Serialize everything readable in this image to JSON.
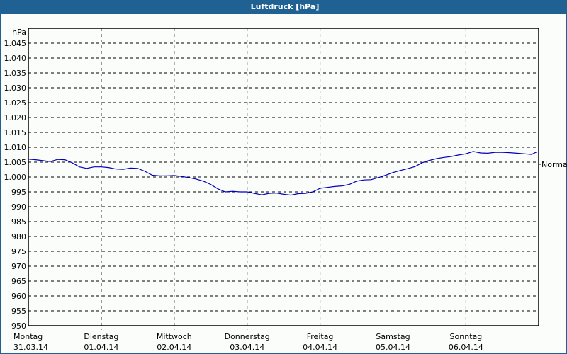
{
  "window": {
    "title": "Luftdruck [hPa]"
  },
  "colors": {
    "titlebar": "#1f6193",
    "line": "#0000c0",
    "grid": "#000000",
    "background": "#fbfdfb"
  },
  "chart_data": {
    "type": "line",
    "title": "Luftdruck [hPa]",
    "xlabel": "",
    "ylabel": "hPa",
    "ylim": [
      950,
      1050
    ],
    "grid": true,
    "yticks": [
      "950",
      "955",
      "960",
      "965",
      "970",
      "975",
      "980",
      "985",
      "990",
      "995",
      "1.000",
      "1.005",
      "1.010",
      "1.015",
      "1.020",
      "1.025",
      "1.030",
      "1.035",
      "1.040",
      "1.045"
    ],
    "xticks": [
      {
        "day": "Montag",
        "date": "31.03.14"
      },
      {
        "day": "Dienstag",
        "date": "01.04.14"
      },
      {
        "day": "Mittwoch",
        "date": "02.04.14"
      },
      {
        "day": "Donnerstag",
        "date": "03.04.14"
      },
      {
        "day": "Freitag",
        "date": "04.04.14"
      },
      {
        "day": "Samstag",
        "date": "05.04.14"
      },
      {
        "day": "Sonntag",
        "date": "06.04.14"
      }
    ],
    "reference": {
      "label": "Normal",
      "value": 1004.3
    },
    "series": [
      {
        "name": "Luftdruck",
        "x_days": [
          0,
          0.1,
          0.2,
          0.3,
          0.4,
          0.5,
          0.6,
          0.7,
          0.8,
          0.9,
          1.0,
          1.1,
          1.2,
          1.3,
          1.4,
          1.5,
          1.6,
          1.7,
          1.8,
          1.9,
          2.0,
          2.1,
          2.2,
          2.3,
          2.4,
          2.5,
          2.6,
          2.7,
          2.8,
          2.9,
          3.0,
          3.1,
          3.2,
          3.3,
          3.4,
          3.5,
          3.6,
          3.7,
          3.8,
          3.9,
          4.0,
          4.1,
          4.2,
          4.3,
          4.4,
          4.5,
          4.6,
          4.7,
          4.8,
          4.9,
          5.0,
          5.1,
          5.2,
          5.3,
          5.4,
          5.5,
          5.6,
          5.7,
          5.8,
          5.9,
          6.0,
          6.1,
          6.2,
          6.3,
          6.4,
          6.5,
          6.6,
          6.7,
          6.8,
          6.9,
          7.0
        ],
        "values": [
          1006.0,
          1005.8,
          1005.5,
          1005.2,
          1005.9,
          1005.8,
          1004.8,
          1003.4,
          1002.9,
          1003.4,
          1003.4,
          1003.2,
          1002.7,
          1002.6,
          1003.0,
          1002.9,
          1001.9,
          1000.6,
          1000.4,
          1000.4,
          1000.5,
          1000.2,
          999.8,
          999.3,
          998.6,
          997.5,
          996.0,
          995.0,
          995.2,
          995.0,
          995.0,
          994.5,
          994.0,
          994.5,
          994.6,
          994.2,
          993.9,
          994.4,
          994.5,
          995.0,
          996.2,
          996.5,
          996.8,
          997.0,
          997.5,
          998.6,
          999.0,
          999.1,
          999.8,
          1000.6,
          1001.5,
          1002.2,
          1002.8,
          1003.5,
          1004.8,
          1005.6,
          1006.2,
          1006.6,
          1006.9,
          1007.4,
          1007.8,
          1008.6,
          1008.1,
          1008.0,
          1008.3,
          1008.3,
          1008.2,
          1008.0,
          1007.8,
          1007.6,
          1008.4
        ]
      }
    ]
  }
}
